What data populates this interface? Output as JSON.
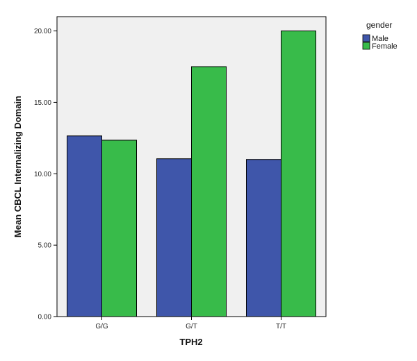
{
  "chart_data": {
    "type": "bar",
    "title": "",
    "xlabel": "TPH2",
    "ylabel": "Mean CBCL Internalizing Domain",
    "categories": [
      "G/G",
      "G/T",
      "T/T"
    ],
    "series": [
      {
        "name": "Male",
        "values": [
          12.65,
          11.05,
          11.0
        ]
      },
      {
        "name": "Female",
        "values": [
          12.35,
          17.5,
          20.0
        ]
      }
    ],
    "ylim": [
      0,
      21.0
    ],
    "yticks": [
      0,
      5,
      10,
      15,
      20
    ],
    "ytick_labels": [
      "0.00",
      "5.00",
      "10.00",
      "15.00",
      "20.00"
    ],
    "grid": false,
    "legend": {
      "title": "gender",
      "position": "top-right"
    },
    "colors": {
      "Male": "#3f56aa",
      "Female": "#38bb4a",
      "plot_background": "#f0f0f0",
      "axis": "#000000"
    }
  }
}
